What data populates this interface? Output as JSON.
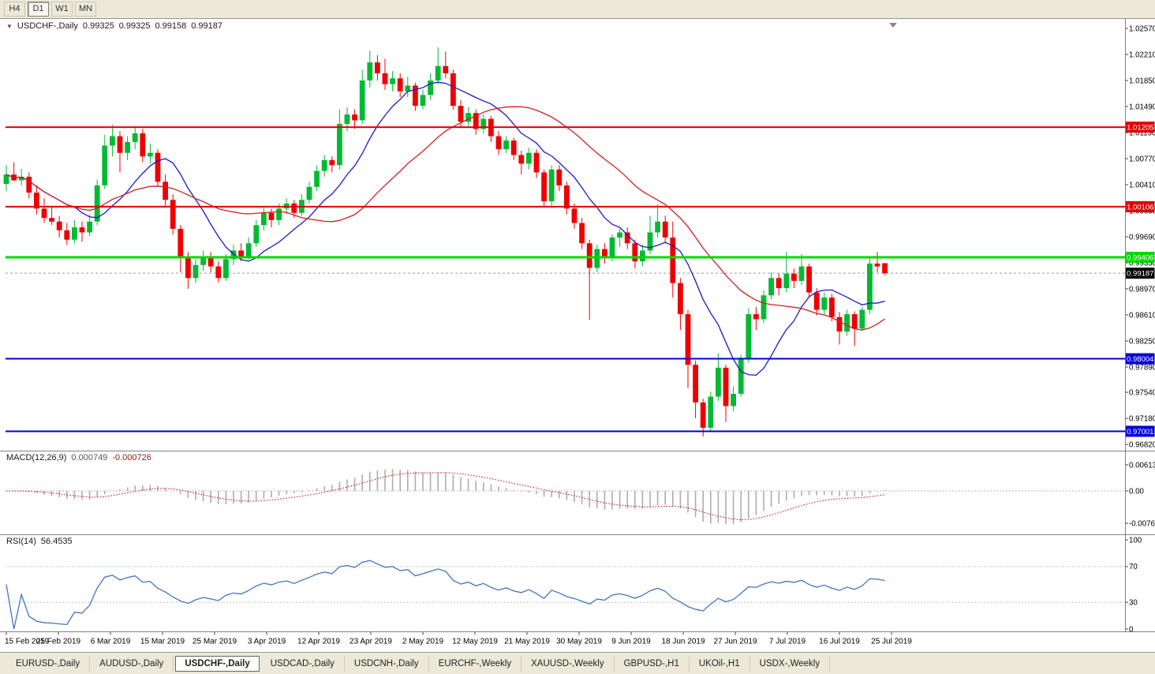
{
  "toolbar": {
    "timeframes": [
      {
        "label": "H4",
        "active": false
      },
      {
        "label": "D1",
        "active": true
      },
      {
        "label": "W1",
        "active": false
      },
      {
        "label": "MN",
        "active": false
      }
    ]
  },
  "chart": {
    "title": "USDCHF-,Daily",
    "open": "0.99325",
    "high": "0.99325",
    "low": "0.99158",
    "close": "0.99187"
  },
  "macd_panel": {
    "label": "MACD(12,26,9)",
    "main_value": "0.000749",
    "signal_value": "-0.000726"
  },
  "rsi_panel": {
    "label": "RSI(14)",
    "value": "56.4535"
  },
  "tabs": [
    {
      "label": "EURUSD-,Daily",
      "active": false
    },
    {
      "label": "AUDUSD-,Daily",
      "active": false
    },
    {
      "label": "USDCHF-,Daily",
      "active": true
    },
    {
      "label": "USDCAD-,Daily",
      "active": false
    },
    {
      "label": "USDCNH-,Daily",
      "active": false
    },
    {
      "label": "EURCHF-,Weekly",
      "active": false
    },
    {
      "label": "XAUUSD-,Weekly",
      "active": false
    },
    {
      "label": "GBPUSD-,H1",
      "active": false
    },
    {
      "label": "UKOil-,H1",
      "active": false
    },
    {
      "label": "USDX-,Weekly",
      "active": false
    }
  ],
  "colors": {
    "bull": "#00BA32",
    "bear": "#EE0000",
    "ma_fast": "#1A1AC8",
    "ma_slow": "#D02020",
    "macd_hist": "#ADADAD",
    "macd_signal": "#CC0000",
    "rsi_line": "#3F76C0",
    "badge_last": "#000000",
    "separator": "#808080",
    "last_price_line": "#999999"
  },
  "chart_data": {
    "type": "candlestick",
    "symbol": "USDCHF-",
    "timeframe": "Daily",
    "ma_fast_period": 10,
    "ma_slow_period": 25,
    "y_tick_labels": [
      "1.02570",
      "1.02210",
      "1.01850",
      "1.01490",
      "1.01130",
      "1.00770",
      "1.00410",
      "1.00050",
      "0.99690",
      "0.99330",
      "0.98970",
      "0.98610",
      "0.98250",
      "0.97890",
      "0.97540",
      "0.97180",
      "0.96820"
    ],
    "x_tick_labels": [
      "15 Feb 2019",
      "25 Feb 2019",
      "6 Mar 2019",
      "15 Mar 2019",
      "25 Mar 2019",
      "3 Apr 2019",
      "12 Apr 2019",
      "23 Apr 2019",
      "2 May 2019",
      "12 May 2019",
      "21 May 2019",
      "30 May 2019",
      "9 Jun 2019",
      "18 Jun 2019",
      "27 Jun 2019",
      "7 Jul 2019",
      "16 Jul 2019",
      "25 Jul 2019"
    ],
    "hlines": [
      {
        "price": 1.01205,
        "label": "1.01205",
        "color": "#E00000",
        "width": 2
      },
      {
        "price": 1.00106,
        "label": "1.00106",
        "color": "#E00000",
        "width": 2
      },
      {
        "price": 0.99406,
        "label": "0.99406",
        "color": "#00D800",
        "width": 3
      },
      {
        "price": 0.98004,
        "label": "0.98004",
        "color": "#0000D8",
        "width": 2
      },
      {
        "price": 0.97001,
        "label": "0.97001",
        "color": "#0000D8",
        "width": 2
      }
    ],
    "last_price": {
      "value": 0.99187,
      "label": "0.99187"
    },
    "macd": {
      "fast": 12,
      "slow": 26,
      "signal": 9,
      "y_ticks": [
        {
          "value": 0.00613,
          "label": "0.00613"
        },
        {
          "value": 0,
          "label": "0.00"
        },
        {
          "value": -0.00761,
          "label": "-0.00761"
        }
      ]
    },
    "rsi": {
      "period": 14,
      "levels": [
        70,
        30
      ],
      "y_ticks": [
        {
          "value": 100,
          "label": "100"
        },
        {
          "value": 70,
          "label": "70"
        },
        {
          "value": 30,
          "label": "30"
        },
        {
          "value": 0,
          "label": "0"
        }
      ]
    },
    "candles": [
      [
        1.0042,
        1.0068,
        1.0032,
        1.0055
      ],
      [
        1.0055,
        1.0072,
        1.0046,
        1.0047
      ],
      [
        1.0047,
        1.0063,
        1.004,
        1.0052
      ],
      [
        1.0052,
        1.0058,
        1.0022,
        1.003
      ],
      [
        1.003,
        1.004,
        1.0,
        1.0008
      ],
      [
        1.0008,
        1.0022,
        0.9988,
        0.9995
      ],
      [
        0.9995,
        1.001,
        0.9985,
        0.999
      ],
      [
        0.999,
        0.9998,
        0.9968,
        0.9978
      ],
      [
        0.9978,
        0.9988,
        0.9958,
        0.9965
      ],
      [
        0.9965,
        0.9992,
        0.996,
        0.9982
      ],
      [
        0.9982,
        0.999,
        0.9962,
        0.9975
      ],
      [
        0.9975,
        1.0,
        0.997,
        0.999
      ],
      [
        0.999,
        1.0048,
        0.9985,
        1.004
      ],
      [
        1.004,
        1.011,
        1.0035,
        1.0095
      ],
      [
        1.0095,
        1.0124,
        1.008,
        1.0108
      ],
      [
        1.0108,
        1.0115,
        1.0058,
        1.0085
      ],
      [
        1.0085,
        1.0108,
        1.0075,
        1.01
      ],
      [
        1.01,
        1.0122,
        1.009,
        1.0112
      ],
      [
        1.0112,
        1.0118,
        1.0072,
        1.008
      ],
      [
        1.008,
        1.0098,
        1.007,
        1.0085
      ],
      [
        1.0085,
        1.009,
        1.0038,
        1.0045
      ],
      [
        1.0045,
        1.0055,
        1.001,
        1.002
      ],
      [
        1.002,
        1.0028,
        0.9972,
        0.998
      ],
      [
        0.998,
        0.9985,
        0.992,
        0.994
      ],
      [
        0.994,
        0.9948,
        0.9897,
        0.9912
      ],
      [
        0.9912,
        0.9938,
        0.9905,
        0.993
      ],
      [
        0.993,
        0.995,
        0.9922,
        0.9942
      ],
      [
        0.9942,
        0.9948,
        0.992,
        0.9928
      ],
      [
        0.9928,
        0.9935,
        0.9906,
        0.9912
      ],
      [
        0.9912,
        0.9945,
        0.9908,
        0.9938
      ],
      [
        0.9938,
        0.9958,
        0.993,
        0.995
      ],
      [
        0.995,
        0.996,
        0.9935,
        0.9942
      ],
      [
        0.9942,
        0.9968,
        0.9938,
        0.996
      ],
      [
        0.996,
        0.9992,
        0.9955,
        0.9985
      ],
      [
        0.9985,
        1.001,
        0.9978,
        1.0002
      ],
      [
        1.0002,
        1.0008,
        0.9982,
        0.9992
      ],
      [
        0.9992,
        1.0015,
        0.9985,
        1.0008
      ],
      [
        1.0008,
        1.0022,
        1.0,
        1.0015
      ],
      [
        1.0015,
        1.002,
        0.9995,
        1.0002
      ],
      [
        1.0002,
        1.0028,
        0.9998,
        1.002
      ],
      [
        1.002,
        1.0045,
        1.0015,
        1.0038
      ],
      [
        1.0038,
        1.0068,
        1.0032,
        1.006
      ],
      [
        1.006,
        1.0082,
        1.0052,
        1.0075
      ],
      [
        1.0075,
        1.008,
        1.0058,
        1.0068
      ],
      [
        1.0068,
        1.0145,
        1.0062,
        1.0125
      ],
      [
        1.0125,
        1.0148,
        1.0115,
        1.0138
      ],
      [
        1.0138,
        1.0145,
        1.0118,
        1.013
      ],
      [
        1.013,
        1.02,
        1.0125,
        1.0185
      ],
      [
        1.0185,
        1.0226,
        1.0175,
        1.021
      ],
      [
        1.021,
        1.022,
        1.0185,
        1.0195
      ],
      [
        1.0195,
        1.0215,
        1.0172,
        1.018
      ],
      [
        1.018,
        1.0198,
        1.017,
        1.0188
      ],
      [
        1.0188,
        1.0195,
        1.0162,
        1.017
      ],
      [
        1.017,
        1.019,
        1.0162,
        1.0178
      ],
      [
        1.0178,
        1.0182,
        1.0143,
        1.015
      ],
      [
        1.015,
        1.0172,
        1.0145,
        1.0165
      ],
      [
        1.0165,
        1.0195,
        1.0158,
        1.0185
      ],
      [
        1.0185,
        1.0231,
        1.018,
        1.0205
      ],
      [
        1.0205,
        1.0225,
        1.0188,
        1.0195
      ],
      [
        1.0195,
        1.02,
        1.0145,
        1.015
      ],
      [
        1.015,
        1.0158,
        1.012,
        1.0128
      ],
      [
        1.0128,
        1.0148,
        1.0122,
        1.014
      ],
      [
        1.014,
        1.0145,
        1.011,
        1.0118
      ],
      [
        1.0118,
        1.0138,
        1.0112,
        1.0132
      ],
      [
        1.0132,
        1.0136,
        1.01,
        1.0108
      ],
      [
        1.0108,
        1.0115,
        1.0082,
        1.009
      ],
      [
        1.009,
        1.0108,
        1.0085,
        1.0102
      ],
      [
        1.0102,
        1.0106,
        1.0075,
        1.0082
      ],
      [
        1.0082,
        1.0088,
        1.0055,
        1.007
      ],
      [
        1.007,
        1.0092,
        1.0062,
        1.0085
      ],
      [
        1.0085,
        1.009,
        1.005,
        1.0058
      ],
      [
        1.0058,
        1.0062,
        1.001,
        1.0018
      ],
      [
        1.0018,
        1.0068,
        1.0012,
        1.0062
      ],
      [
        1.0062,
        1.0068,
        1.0032,
        1.004
      ],
      [
        1.004,
        1.0045,
        1.0,
        1.0008
      ],
      [
        1.0008,
        1.0015,
        0.998,
        0.9988
      ],
      [
        0.9988,
        0.9995,
        0.9952,
        0.996
      ],
      [
        0.996,
        0.9965,
        0.9854,
        0.9926
      ],
      [
        0.9926,
        0.9958,
        0.992,
        0.9952
      ],
      [
        0.9952,
        0.996,
        0.9932,
        0.994
      ],
      [
        0.994,
        0.9972,
        0.9935,
        0.9968
      ],
      [
        0.9968,
        0.998,
        0.9955,
        0.9975
      ],
      [
        0.9975,
        0.9982,
        0.9952,
        0.996
      ],
      [
        0.996,
        0.9965,
        0.9925,
        0.9935
      ],
      [
        0.9935,
        0.9958,
        0.9928,
        0.995
      ],
      [
        0.995,
        0.9998,
        0.9945,
        0.9975
      ],
      [
        0.9975,
        1.0014,
        0.9968,
        0.999
      ],
      [
        0.999,
        0.9998,
        0.996,
        0.9968
      ],
      [
        0.9968,
        0.999,
        0.9885,
        0.9905
      ],
      [
        0.9905,
        0.9912,
        0.984,
        0.9862
      ],
      [
        0.9862,
        0.9868,
        0.976,
        0.9792
      ],
      [
        0.9792,
        0.9798,
        0.9718,
        0.974
      ],
      [
        0.974,
        0.9745,
        0.9693,
        0.9705
      ],
      [
        0.9705,
        0.9755,
        0.97,
        0.9748
      ],
      [
        0.9748,
        0.9808,
        0.9742,
        0.9788
      ],
      [
        0.9788,
        0.9792,
        0.9713,
        0.9735
      ],
      [
        0.9735,
        0.9762,
        0.9728,
        0.9752
      ],
      [
        0.9752,
        0.9806,
        0.9748,
        0.98
      ],
      [
        0.98,
        0.987,
        0.9795,
        0.9862
      ],
      [
        0.9862,
        0.9872,
        0.984,
        0.9855
      ],
      [
        0.9855,
        0.9895,
        0.985,
        0.9888
      ],
      [
        0.9888,
        0.992,
        0.9882,
        0.9912
      ],
      [
        0.9912,
        0.9918,
        0.9888,
        0.9898
      ],
      [
        0.9898,
        0.9948,
        0.9892,
        0.9918
      ],
      [
        0.9918,
        0.9925,
        0.9898,
        0.9908
      ],
      [
        0.9908,
        0.9945,
        0.9902,
        0.9928
      ],
      [
        0.9928,
        0.9932,
        0.9885,
        0.9892
      ],
      [
        0.9892,
        0.9898,
        0.986,
        0.9868
      ],
      [
        0.9868,
        0.9892,
        0.9862,
        0.9885
      ],
      [
        0.9885,
        0.989,
        0.9852,
        0.9858
      ],
      [
        0.9858,
        0.9865,
        0.982,
        0.9838
      ],
      [
        0.9838,
        0.9868,
        0.9832,
        0.9862
      ],
      [
        0.9862,
        0.9866,
        0.9818,
        0.9842
      ],
      [
        0.9842,
        0.9872,
        0.9838,
        0.9868
      ],
      [
        0.9868,
        0.994,
        0.9862,
        0.9932
      ],
      [
        0.9932,
        0.9948,
        0.992,
        0.9928
      ],
      [
        0.99325,
        0.99325,
        0.99158,
        0.99187
      ]
    ]
  }
}
